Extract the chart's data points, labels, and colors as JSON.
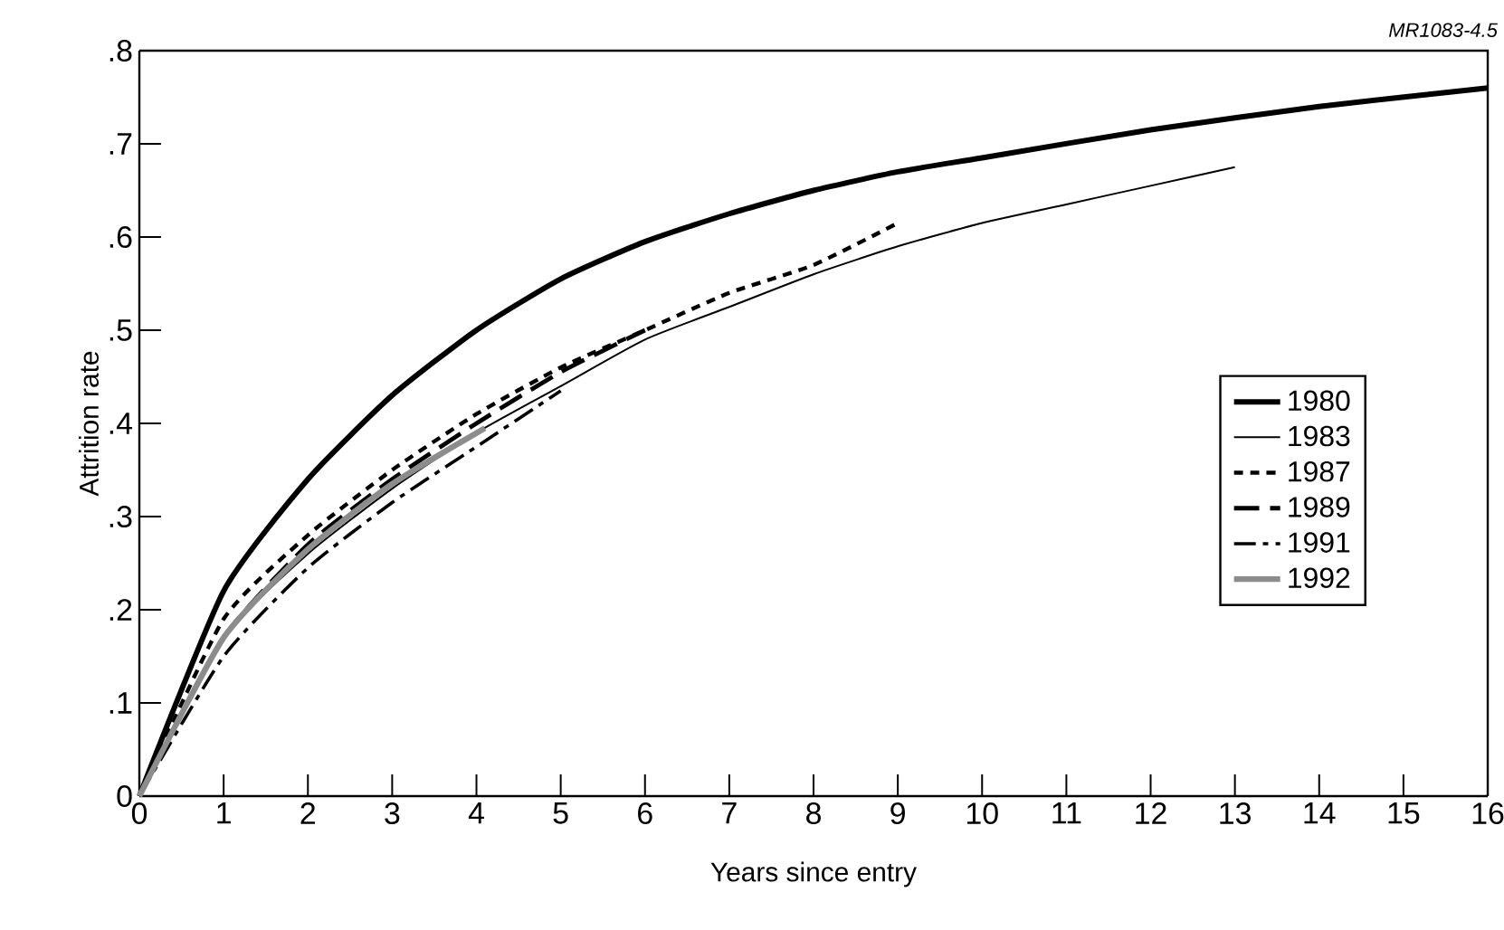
{
  "chart_data": {
    "type": "line",
    "xlabel": "Years since entry",
    "ylabel": "Attrition rate",
    "annotations": [
      "*MR1083-4.5*"
    ],
    "xlim": [
      0,
      16
    ],
    "xticks": [
      0,
      1,
      2,
      3,
      4,
      5,
      6,
      7,
      8,
      9,
      10,
      11,
      12,
      13,
      14,
      15,
      16
    ],
    "ylim": [
      0,
      0.8
    ],
    "yticks": [
      0,
      {
        "value": 0.1,
        "label": ".1"
      },
      {
        "value": 0.2,
        "label": ".2"
      },
      {
        "value": 0.3,
        "label": ".3"
      },
      {
        "value": 0.4,
        "label": ".4"
      },
      {
        "value": 0.5,
        "label": ".5"
      },
      {
        "value": 0.6,
        "label": ".6"
      },
      {
        "value": 0.7,
        "label": ".7"
      },
      {
        "value": 0.8,
        "label": ".8"
      }
    ],
    "grid": false,
    "legend": "right",
    "marker": "none",
    "series": [
      {
        "name": "1980",
        "color": "#000000",
        "line_style": "solid",
        "x": [
          0,
          1,
          2,
          3,
          4,
          5,
          6,
          7,
          8,
          9,
          10,
          12,
          14,
          16
        ],
        "values": [
          0,
          0.22,
          0.34,
          0.43,
          0.5,
          0.555,
          0.595,
          0.625,
          0.65,
          0.67,
          0.685,
          0.715,
          0.74,
          0.76
        ]
      },
      {
        "name": "1983",
        "color": "#000000",
        "line_style": "solid",
        "x": [
          0,
          1,
          2,
          3,
          4,
          5,
          6,
          7,
          8,
          9,
          10,
          11,
          12,
          13
        ],
        "values": [
          0,
          0.17,
          0.26,
          0.33,
          0.39,
          0.44,
          0.49,
          0.525,
          0.56,
          0.59,
          0.615,
          0.635,
          0.655,
          0.675
        ]
      },
      {
        "name": "1987",
        "color": "#000000",
        "line_style": "dotted",
        "x": [
          0,
          1,
          2,
          3,
          4,
          5,
          6,
          7,
          8,
          9
        ],
        "values": [
          0,
          0.19,
          0.28,
          0.35,
          0.41,
          0.46,
          0.5,
          0.54,
          0.57,
          0.615
        ]
      },
      {
        "name": "1989",
        "color": "#000000",
        "line_style": "dashed",
        "x": [
          0,
          1,
          2,
          3,
          4,
          5,
          6
        ],
        "values": [
          0,
          0.17,
          0.27,
          0.34,
          0.4,
          0.455,
          0.5
        ]
      },
      {
        "name": "1991",
        "color": "#000000",
        "line_style": "dashdot",
        "x": [
          0,
          1,
          2,
          3,
          4,
          5
        ],
        "values": [
          0,
          0.15,
          0.245,
          0.315,
          0.375,
          0.435
        ]
      },
      {
        "name": "1992",
        "color": "#8c8c8c",
        "line_style": "solid",
        "x": [
          0,
          1,
          2,
          3,
          4.1
        ],
        "values": [
          0,
          0.17,
          0.265,
          0.335,
          0.395
        ]
      }
    ]
  }
}
